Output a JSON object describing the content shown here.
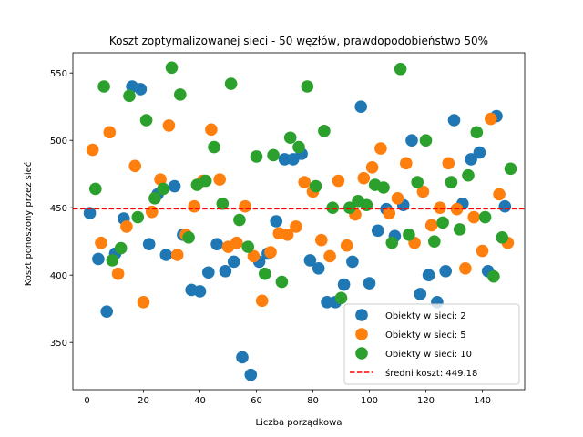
{
  "chart_data": {
    "type": "scatter",
    "title": "Koszt zoptymalizowanej sieci - 50 węzłów, prawdopodobieństwo 50%",
    "xlabel": "Liczba porządkowa",
    "ylabel": "Koszt ponoszony przez sieć",
    "xlim": [
      -5,
      155
    ],
    "ylim": [
      315,
      565
    ],
    "xticks": [
      0,
      20,
      40,
      60,
      80,
      100,
      120,
      140
    ],
    "yticks": [
      350,
      400,
      450,
      500,
      550
    ],
    "grid": false,
    "legend_position": "lower-right",
    "hline": {
      "y": 449.18,
      "label": "średni koszt: 449.18",
      "color": "#ff0000",
      "style": "dashed"
    },
    "series": [
      {
        "name": "Obiekty w sieci: 2",
        "color": "#1f77b4",
        "x": [
          1,
          4,
          7,
          10,
          13,
          16,
          19,
          22,
          25,
          28,
          31,
          34,
          37,
          40,
          43,
          46,
          49,
          52,
          55,
          58,
          61,
          64,
          67,
          70,
          73,
          76,
          79,
          82,
          85,
          88,
          91,
          94,
          97,
          100,
          103,
          106,
          109,
          112,
          115,
          118,
          121,
          124,
          127,
          130,
          133,
          136,
          139,
          142,
          145,
          148
        ],
        "y": [
          446,
          412,
          373,
          416,
          442,
          540,
          538,
          423,
          460,
          415,
          466,
          430,
          389,
          388,
          402,
          423,
          403,
          410,
          339,
          326,
          410,
          416,
          440,
          486,
          486,
          490,
          411,
          405,
          380,
          380,
          393,
          410,
          525,
          394,
          433,
          449,
          429,
          452,
          500,
          386,
          400,
          380,
          403,
          515,
          453,
          486,
          491,
          403,
          518,
          451
        ]
      },
      {
        "name": "Obiekty w sieci: 5",
        "color": "#ff7f0e",
        "x": [
          2,
          5,
          8,
          11,
          14,
          17,
          20,
          23,
          26,
          29,
          32,
          35,
          38,
          41,
          44,
          47,
          50,
          53,
          56,
          59,
          62,
          65,
          68,
          71,
          74,
          77,
          80,
          83,
          86,
          89,
          92,
          95,
          98,
          101,
          104,
          107,
          110,
          113,
          116,
          119,
          122,
          125,
          128,
          131,
          134,
          137,
          140,
          143,
          146,
          149
        ],
        "y": [
          493,
          424,
          506,
          401,
          436,
          481,
          380,
          447,
          471,
          511,
          415,
          430,
          451,
          470,
          508,
          471,
          421,
          424,
          451,
          414,
          381,
          417,
          431,
          430,
          436,
          469,
          462,
          426,
          414,
          470,
          422,
          445,
          472,
          480,
          494,
          446,
          457,
          483,
          424,
          462,
          437,
          450,
          483,
          449,
          405,
          443,
          418,
          516,
          460,
          424
        ]
      },
      {
        "name": "Obiekty w sieci: 10",
        "color": "#2ca02c",
        "x": [
          3,
          6,
          9,
          12,
          15,
          18,
          21,
          24,
          27,
          30,
          33,
          36,
          39,
          42,
          45,
          48,
          51,
          54,
          57,
          60,
          63,
          66,
          69,
          72,
          75,
          78,
          81,
          84,
          87,
          90,
          93,
          96,
          99,
          102,
          105,
          108,
          111,
          114,
          117,
          120,
          123,
          126,
          129,
          132,
          135,
          138,
          141,
          144,
          147,
          150
        ],
        "y": [
          464,
          540,
          411,
          420,
          533,
          443,
          515,
          457,
          464,
          554,
          534,
          428,
          467,
          470,
          495,
          453,
          542,
          441,
          421,
          488,
          401,
          489,
          395,
          502,
          495,
          540,
          466,
          507,
          450,
          383,
          450,
          455,
          452,
          467,
          465,
          424,
          553,
          430,
          469,
          500,
          425,
          439,
          469,
          434,
          474,
          506,
          443,
          399,
          428,
          479
        ]
      }
    ]
  }
}
